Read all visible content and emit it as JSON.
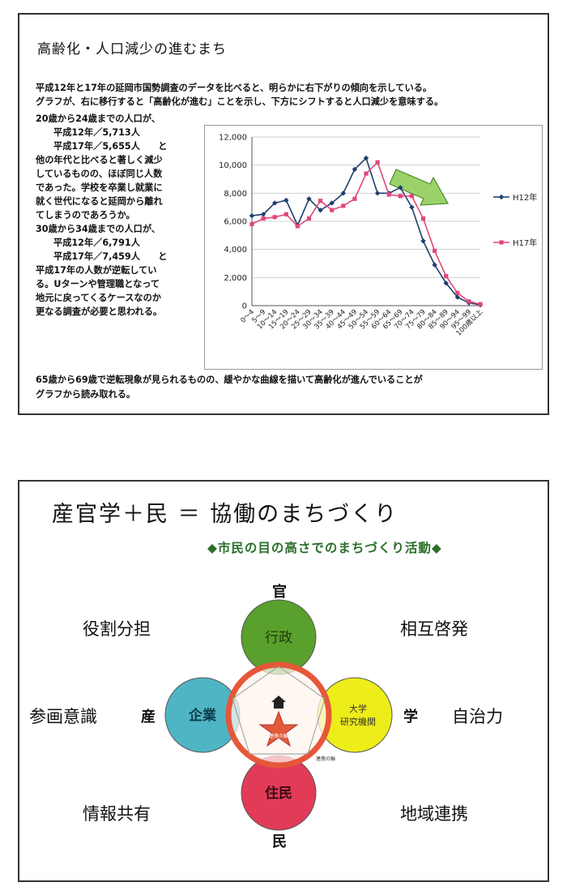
{
  "panel1": {
    "title": "高齢化・人口減少の進むまち",
    "intro": [
      "平成12年と17年の延岡市国勢調査のデータを比べると、明らかに右下がりの傾向を示している。",
      "グラフが、右に移行すると「高齢化が進む」ことを示し、下方にシフトすると人口減少を意味する。"
    ],
    "left_text": [
      {
        "text": "20歳から24歳までの人口が、",
        "indent": false
      },
      {
        "text": "平成12年／5,713人",
        "indent": true
      },
      {
        "text": "平成17年／5,655人　　と",
        "indent": true
      },
      {
        "text": "他の年代と比べると著しく減少",
        "indent": false
      },
      {
        "text": "しているものの、ほぼ同じ人数",
        "indent": false
      },
      {
        "text": "であった。学校を卒業し就業に",
        "indent": false
      },
      {
        "text": "就く世代になると延岡から離れ",
        "indent": false
      },
      {
        "text": "てしまうのであろうか。",
        "indent": false
      },
      {
        "text": "30歳から34歳までの人口が、",
        "indent": false
      },
      {
        "text": "平成12年／6,791人",
        "indent": true
      },
      {
        "text": "平成17年／7,459人　　と",
        "indent": true
      },
      {
        "text": "平成17年の人数が逆転してい",
        "indent": false
      },
      {
        "text": "る。Uターンや管理職となって",
        "indent": false
      },
      {
        "text": "地元に戻ってくるケースなのか",
        "indent": false
      },
      {
        "text": "更なる調査が必要と思われる。",
        "indent": false
      }
    ],
    "footer": [
      "65歳から69歳で逆転現象が見られるものの、緩やかな曲線を描いて高齢化が進んでいることが",
      "グラフから読み取れる。"
    ]
  },
  "chart_data": {
    "type": "line",
    "categories": [
      "0～4",
      "5～9",
      "10～14",
      "15～19",
      "20～24",
      "25～29",
      "30～34",
      "35～39",
      "40～44",
      "45～49",
      "50～54",
      "55～59",
      "60～64",
      "65～69",
      "70～74",
      "75～79",
      "80～84",
      "85～89",
      "90～94",
      "95～99",
      "100歳以上"
    ],
    "series": [
      {
        "name": "H12年",
        "color": "#1f3f6e",
        "marker": "diamond",
        "values": [
          6400,
          6500,
          7300,
          7500,
          5713,
          7600,
          6791,
          7300,
          8000,
          9700,
          10500,
          8000,
          8000,
          8400,
          7000,
          4600,
          2900,
          1600,
          600,
          200,
          50
        ]
      },
      {
        "name": "H17年",
        "color": "#e0487a",
        "marker": "square",
        "values": [
          5800,
          6200,
          6300,
          6500,
          5655,
          6200,
          7459,
          6800,
          7100,
          7600,
          9400,
          10200,
          7900,
          7800,
          7800,
          6200,
          3900,
          2100,
          900,
          300,
          100
        ]
      }
    ],
    "ylim": [
      0,
      12000
    ],
    "yticks": [
      "0",
      "2,000",
      "4,000",
      "6,000",
      "8,000",
      "10,000",
      "12,000"
    ],
    "grid": true,
    "legend": "right",
    "annotation": "green-arrow-down-right"
  },
  "panel2": {
    "title": "産官学＋民 ＝ 協働のまちづくり",
    "subtitle": "◆市民の目の高さでのまちづくり活動◆",
    "words": {
      "top_left": "役割分担",
      "top_right": "相互啓発",
      "mid_left": "参画意識",
      "mid_right": "自治力",
      "bottom_left": "情報共有",
      "bottom_right": "地域連携"
    },
    "labels": {
      "top": "官",
      "left": "産",
      "right": "学",
      "bottom": "民"
    },
    "circles": {
      "top": "行政",
      "left": "企業",
      "right_line1": "大学",
      "right_line2": "研究機関",
      "bottom": "住民"
    },
    "center_small": "連携の輪",
    "center_small2": "連携の輪",
    "colors": {
      "top": "#5aa02c",
      "left": "#4fb5c4",
      "right": "#eded1a",
      "bottom": "#e23b58",
      "ring": "#e6573a",
      "star": "#e25a3a"
    }
  }
}
